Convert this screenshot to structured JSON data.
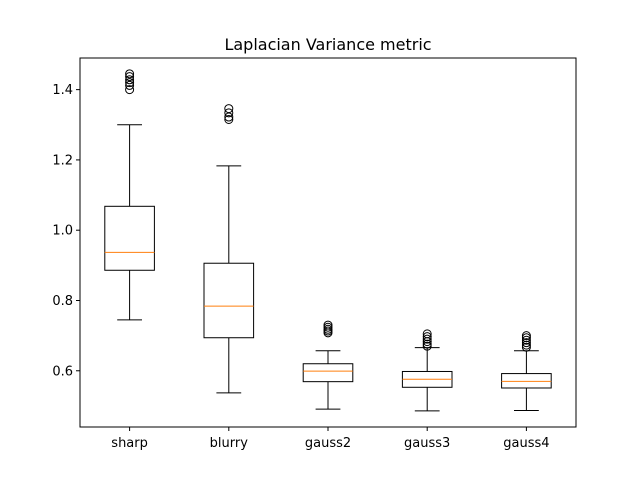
{
  "chart_data": {
    "type": "box",
    "title": "Laplacian Variance metric",
    "xlabel": "",
    "ylabel": "",
    "ylim": [
      0.44,
      1.49
    ],
    "yticks": [
      0.6,
      0.8,
      1.0,
      1.2,
      1.4
    ],
    "ytick_labels": [
      "0.6",
      "0.8",
      "1.0",
      "1.2",
      "1.4"
    ],
    "grid": false,
    "legend": "none",
    "colors": {
      "box": "#000000",
      "median": "#ff7f0e",
      "background": "#ffffff"
    },
    "categories": [
      "sharp",
      "blurry",
      "gauss2",
      "gauss3",
      "gauss4"
    ],
    "boxes": [
      {
        "label": "sharp",
        "whisker_low": 0.745,
        "q1": 0.886,
        "median": 0.937,
        "q3": 1.068,
        "whisker_high": 1.3,
        "outliers": [
          1.4,
          1.412,
          1.42,
          1.428,
          1.437,
          1.445
        ]
      },
      {
        "label": "blurry",
        "whisker_low": 0.537,
        "q1": 0.694,
        "median": 0.784,
        "q3": 0.906,
        "whisker_high": 1.183,
        "outliers": [
          1.315,
          1.322,
          1.334,
          1.346
        ]
      },
      {
        "label": "gauss2",
        "whisker_low": 0.491,
        "q1": 0.569,
        "median": 0.599,
        "q3": 0.62,
        "whisker_high": 0.657,
        "outliers": [
          0.708,
          0.713,
          0.718,
          0.724,
          0.73
        ]
      },
      {
        "label": "gauss3",
        "whisker_low": 0.486,
        "q1": 0.553,
        "median": 0.576,
        "q3": 0.598,
        "whisker_high": 0.666,
        "outliers": [
          0.67,
          0.676,
          0.683,
          0.69,
          0.697,
          0.705
        ]
      },
      {
        "label": "gauss4",
        "whisker_low": 0.487,
        "q1": 0.551,
        "median": 0.57,
        "q3": 0.592,
        "whisker_high": 0.657,
        "outliers": [
          0.667,
          0.673,
          0.68,
          0.687,
          0.694,
          0.7
        ]
      }
    ]
  }
}
